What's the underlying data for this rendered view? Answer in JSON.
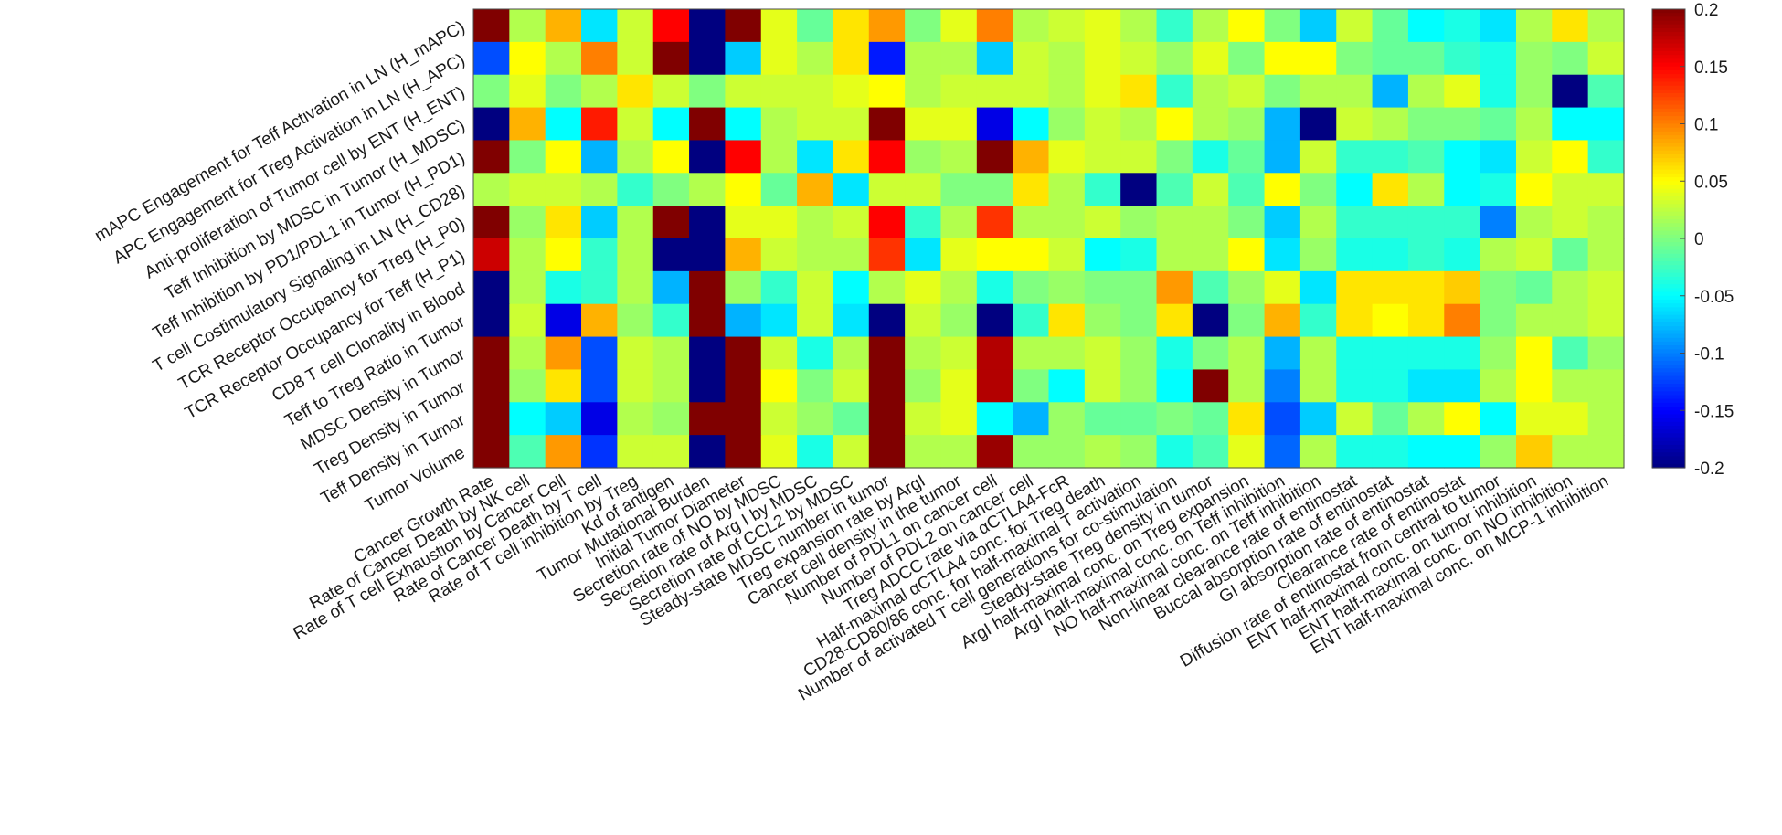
{
  "chart_data": {
    "type": "heatmap",
    "title": "",
    "xlabel": "",
    "ylabel": "",
    "rows": [
      "mAPC Engagement for Teff Activation in LN (H_mAPC)",
      "APC Engagement for Treg Activation in LN (H_APC)",
      "Anti-proliferation of Tumor cell by ENT (H_ENT)",
      "Teff Inhibition by MDSC in Tumor (H_MDSC)",
      "Teff Inhibition by PD1/PDL1 in Tumor (H_PD1)",
      "T cell Costimulatory Signaling in LN (H_CD28)",
      "TCR Receptor Occupancy for Treg (H_P0)",
      "TCR Receptor Occupancy for Teff (H_P1)",
      "CD8 T cell Clonality in Blood",
      "Teff to Treg Ratio in Tumor",
      "MDSC Density in Tumor",
      "Treg Density in Tumor",
      "Teff Density in Tumor",
      "Tumor Volume"
    ],
    "columns": [
      "Cancer Growth Rate",
      "Rate of Cancer Death by NK cell",
      "Rate of T cell Exhaustion by Cancer Cell",
      "Rate of Cancer Death by T cell",
      "Rate of T cell inhibition by Treg",
      "Kd of antigen",
      "Tumor Mutational Burden",
      "Initial Tumor Diameter",
      "Secretion rate of NO by MDSC",
      "Secretion rate of Arg I by MDSC",
      "Secretion rate of CCL2 by MDSC",
      "Steady-state MDSC number in tumor",
      "Treg expansion rate by ArgI",
      "Cancer cell density in the tumor",
      "Number of PDL1 on cancer cell",
      "Number of PDL2 on cancer cell",
      "Treg ADCC rate via αCTLA4-FcR",
      "Half-maximal αCTLA4 conc. for Treg death",
      "CD28-CD80/86 conc. for half-maximal T activation",
      "Number of activated T cell generations for co-stimulation",
      "Steady-state Treg density in tumor",
      "ArgI half-maximal conc. on Treg expansion",
      "ArgI half-maximal conc. on Teff inhibition",
      "NO half-maximal conc. on Teff inhibition",
      "Non-linear clearance rate of entinostat",
      "Buccal absorption rate of entinostat",
      "GI absorption rate of entinostat",
      "Clearance rate of entinostat",
      "Diffusion rate of entinostat from central to tumor",
      "ENT half-maximal conc. on tumor inhibition",
      "ENT half-maximal conc. on NO inhibition",
      "ENT half-maximal conc. on MCP-1 inhibition"
    ],
    "values": [
      [
        0.2,
        0.02,
        0.08,
        -0.06,
        0.03,
        0.15,
        -0.2,
        0.2,
        0.04,
        -0.01,
        0.06,
        0.09,
        0.0,
        0.04,
        0.1,
        0.02,
        0.03,
        0.04,
        0.02,
        -0.03,
        0.02,
        0.05,
        0.0,
        -0.07,
        0.03,
        -0.01,
        -0.05,
        -0.04,
        -0.06,
        0.02,
        0.06,
        0.02
      ],
      [
        -0.12,
        0.05,
        0.02,
        0.1,
        0.03,
        0.2,
        -0.2,
        -0.07,
        0.04,
        0.02,
        0.06,
        -0.14,
        0.02,
        0.02,
        -0.07,
        0.03,
        0.02,
        0.04,
        0.03,
        0.01,
        0.04,
        0.0,
        0.05,
        0.05,
        0.0,
        -0.01,
        -0.01,
        -0.03,
        -0.04,
        0.01,
        0.0,
        0.03
      ],
      [
        0.0,
        0.04,
        0.0,
        0.02,
        0.06,
        0.03,
        0.0,
        0.03,
        0.03,
        0.03,
        0.04,
        0.05,
        0.02,
        0.03,
        0.03,
        0.03,
        0.02,
        0.04,
        0.06,
        -0.03,
        0.02,
        0.03,
        0.0,
        0.02,
        0.02,
        -0.08,
        0.02,
        0.04,
        -0.04,
        0.01,
        -0.2,
        -0.02
      ],
      [
        -0.2,
        0.08,
        -0.05,
        0.14,
        0.03,
        -0.05,
        0.2,
        -0.05,
        0.02,
        0.03,
        0.03,
        0.2,
        0.04,
        0.04,
        -0.16,
        -0.05,
        0.01,
        0.03,
        0.02,
        0.05,
        0.02,
        0.01,
        -0.08,
        -0.2,
        0.03,
        0.02,
        0.0,
        0.0,
        -0.01,
        0.02,
        -0.05,
        -0.05
      ],
      [
        0.2,
        0.0,
        0.05,
        -0.08,
        0.02,
        0.05,
        -0.2,
        0.15,
        0.02,
        -0.06,
        0.06,
        0.15,
        0.01,
        0.02,
        0.2,
        0.08,
        0.04,
        0.03,
        0.03,
        0.0,
        -0.04,
        -0.01,
        -0.08,
        0.03,
        -0.03,
        -0.03,
        -0.02,
        -0.05,
        -0.06,
        0.03,
        0.05,
        -0.03
      ],
      [
        0.02,
        0.03,
        0.03,
        0.02,
        -0.03,
        0.0,
        0.02,
        0.05,
        -0.01,
        0.08,
        -0.06,
        0.03,
        0.03,
        0.0,
        0.0,
        0.06,
        0.02,
        -0.03,
        -0.2,
        -0.02,
        0.03,
        -0.02,
        0.05,
        0.0,
        -0.05,
        0.06,
        0.02,
        -0.05,
        -0.04,
        0.05,
        0.03,
        0.03
      ],
      [
        0.2,
        0.01,
        0.06,
        -0.07,
        0.02,
        0.2,
        -0.2,
        0.04,
        0.04,
        0.02,
        0.03,
        0.15,
        -0.03,
        0.02,
        0.13,
        0.02,
        0.02,
        0.03,
        0.01,
        0.02,
        0.02,
        0.0,
        -0.07,
        0.02,
        -0.03,
        -0.03,
        -0.03,
        -0.03,
        -0.1,
        0.02,
        0.03,
        0.02
      ],
      [
        0.17,
        0.02,
        0.05,
        -0.03,
        0.02,
        -0.2,
        -0.2,
        0.08,
        0.03,
        0.02,
        0.02,
        0.13,
        -0.06,
        0.04,
        0.05,
        0.05,
        0.03,
        -0.05,
        -0.04,
        0.02,
        0.02,
        0.05,
        -0.06,
        0.01,
        -0.04,
        -0.04,
        -0.03,
        -0.04,
        0.02,
        0.03,
        -0.01,
        0.02
      ],
      [
        -0.2,
        0.02,
        -0.04,
        -0.03,
        0.02,
        -0.08,
        0.2,
        0.01,
        -0.03,
        0.03,
        -0.05,
        0.02,
        0.04,
        0.02,
        -0.04,
        0.0,
        0.01,
        0.0,
        0.0,
        0.09,
        -0.02,
        0.01,
        0.04,
        -0.06,
        0.06,
        0.06,
        0.06,
        0.07,
        0.0,
        -0.01,
        0.02,
        0.03
      ],
      [
        -0.2,
        0.03,
        -0.16,
        0.08,
        0.01,
        -0.03,
        0.2,
        -0.08,
        -0.06,
        0.03,
        -0.06,
        -0.2,
        0.03,
        0.01,
        -0.2,
        -0.03,
        0.06,
        0.01,
        0.0,
        0.06,
        -0.2,
        0.0,
        0.08,
        -0.03,
        0.06,
        0.05,
        0.06,
        0.1,
        0.0,
        0.02,
        0.02,
        0.03
      ],
      [
        0.2,
        0.02,
        0.09,
        -0.12,
        0.03,
        0.02,
        -0.2,
        0.2,
        0.03,
        -0.04,
        0.02,
        0.2,
        0.02,
        0.03,
        0.18,
        0.02,
        0.02,
        0.03,
        0.01,
        -0.04,
        0.0,
        0.02,
        -0.08,
        0.02,
        -0.04,
        -0.04,
        -0.04,
        -0.04,
        0.01,
        0.05,
        -0.02,
        0.01
      ],
      [
        0.2,
        0.01,
        0.06,
        -0.12,
        0.03,
        0.02,
        -0.2,
        0.2,
        0.05,
        0.0,
        0.03,
        0.2,
        0.01,
        0.04,
        0.18,
        0.0,
        -0.05,
        0.03,
        0.01,
        -0.05,
        0.2,
        0.02,
        -0.1,
        0.02,
        -0.04,
        -0.04,
        -0.06,
        -0.06,
        0.02,
        0.05,
        0.02,
        0.02
      ],
      [
        0.2,
        -0.05,
        -0.07,
        -0.16,
        0.02,
        0.01,
        0.2,
        0.2,
        0.03,
        0.01,
        -0.01,
        0.2,
        0.03,
        0.04,
        -0.05,
        -0.08,
        0.01,
        -0.01,
        -0.01,
        0.0,
        -0.01,
        0.06,
        -0.12,
        -0.07,
        0.03,
        -0.01,
        0.02,
        0.05,
        -0.05,
        0.04,
        0.04,
        0.02
      ],
      [
        0.2,
        -0.02,
        0.09,
        -0.13,
        0.03,
        0.03,
        -0.2,
        0.2,
        0.04,
        -0.04,
        0.03,
        0.2,
        0.02,
        0.02,
        0.19,
        0.01,
        0.01,
        0.02,
        0.01,
        -0.04,
        -0.02,
        0.04,
        -0.11,
        0.02,
        -0.04,
        -0.04,
        -0.05,
        -0.05,
        0.01,
        0.07,
        0.02,
        0.02
      ]
    ],
    "vmin": -0.2,
    "vmax": 0.2,
    "colormap": "jet",
    "colorbar_ticks": [
      "0.2",
      "0.15",
      "0.1",
      "0.05",
      "0",
      "-0.05",
      "-0.1",
      "-0.15",
      "-0.2"
    ],
    "legend": "colorbar-right",
    "grid": false
  }
}
